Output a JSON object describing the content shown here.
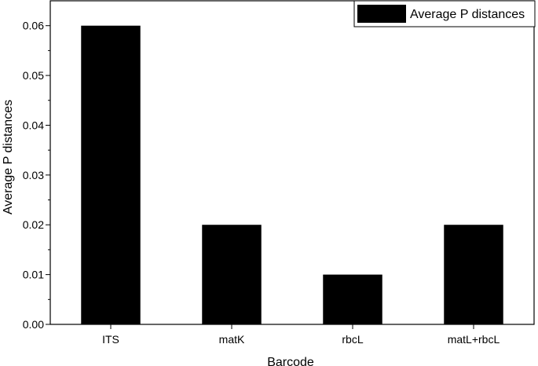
{
  "chart_data": {
    "type": "bar",
    "categories": [
      "ITS",
      "matK",
      "rbcL",
      "matL+rbcL"
    ],
    "series": [
      {
        "name": "Average P distances",
        "values": [
          0.06,
          0.02,
          0.01,
          0.02
        ]
      }
    ],
    "xlabel": "Barcode",
    "ylabel": "Average P distances",
    "ylim": [
      0,
      0.065
    ],
    "yticks": [
      "0.00",
      "0.01",
      "0.02",
      "0.03",
      "0.04",
      "0.05",
      "0.06"
    ],
    "grid": false,
    "legend_position": "top-right",
    "bar_color": "#000000"
  }
}
